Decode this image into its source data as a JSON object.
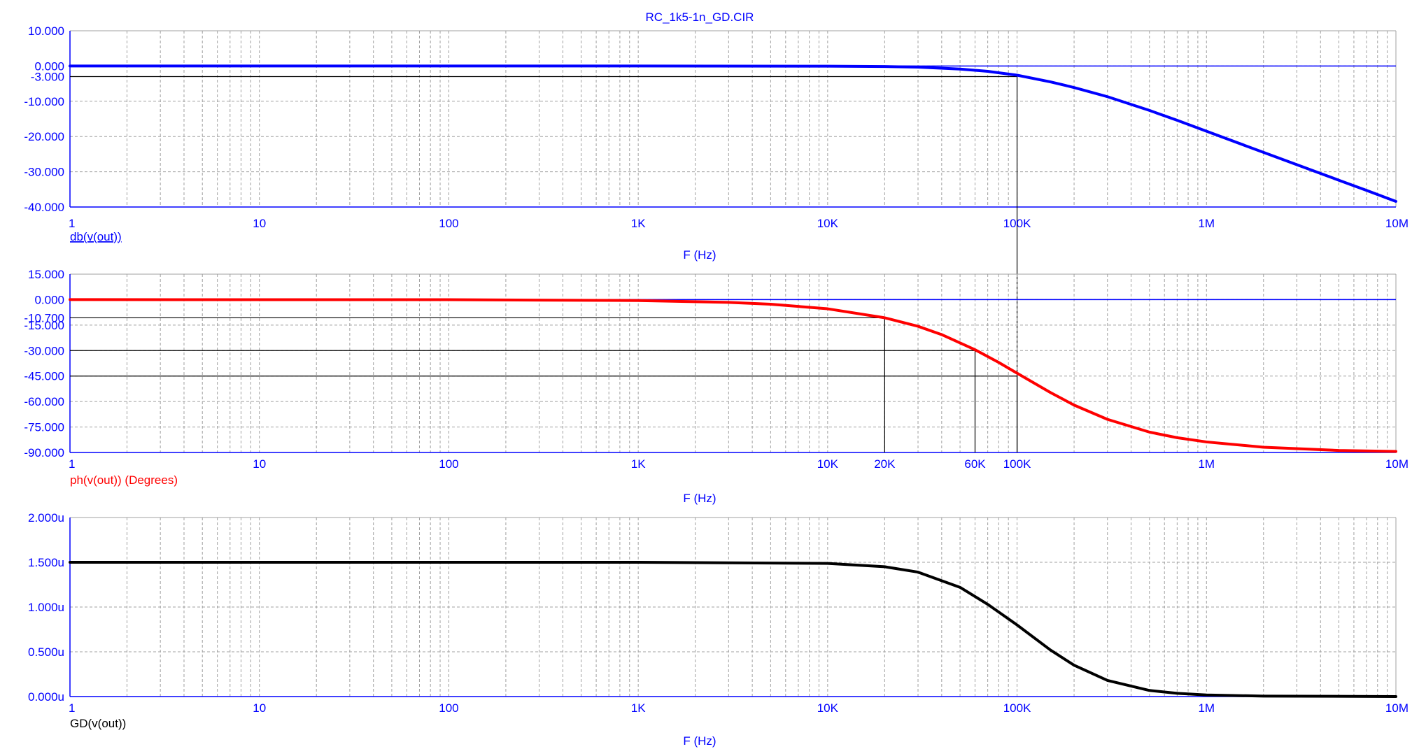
{
  "window": {
    "title": "RC_1k5-1n_GD.CIR"
  },
  "colors": {
    "axis": "#0000ff",
    "grid": "#a0a0a0",
    "marker": "#000000"
  },
  "chart_data": [
    {
      "type": "line",
      "scale_x": "log",
      "xlim": [
        1,
        10000000
      ],
      "ylim": [
        -40,
        10
      ],
      "xlabel": "F (Hz)",
      "ylabel": "db(v(out))",
      "x_ticks": [
        {
          "v": 1,
          "label": "1"
        },
        {
          "v": 10,
          "label": "10"
        },
        {
          "v": 100,
          "label": "100"
        },
        {
          "v": 1000,
          "label": "1K"
        },
        {
          "v": 10000,
          "label": "10K"
        },
        {
          "v": 100000,
          "label": "100K"
        },
        {
          "v": 1000000,
          "label": "1M"
        },
        {
          "v": 10000000,
          "label": "10M"
        }
      ],
      "y_ticks": [
        {
          "v": 10,
          "label": "10.000"
        },
        {
          "v": 0,
          "label": "0.000"
        },
        {
          "v": -3,
          "label": "-3.000"
        },
        {
          "v": -10,
          "label": "-10.000"
        },
        {
          "v": -20,
          "label": "-20.000"
        },
        {
          "v": -30,
          "label": "-30.000"
        },
        {
          "v": -40,
          "label": "-40.000"
        }
      ],
      "grid_y": [
        10,
        0,
        -10,
        -20,
        -30,
        -40
      ],
      "hlines": [
        {
          "y": 0,
          "color": "#0000ff"
        }
      ],
      "markers": [
        {
          "y": -3,
          "x": 100000
        }
      ],
      "marker_labels": [],
      "series": [
        {
          "color": "#0000ff",
          "x": [
            1,
            10,
            100,
            1000,
            10000,
            20000,
            30000,
            50000,
            70000,
            100000,
            150000,
            200000,
            300000,
            500000,
            700000,
            1000000,
            2000000,
            3000000,
            5000000,
            7000000,
            10000000
          ],
          "y": [
            0,
            0,
            0,
            0,
            -0.04,
            -0.15,
            -0.33,
            -0.86,
            -1.5,
            -2.6,
            -4.5,
            -6.1,
            -8.7,
            -12.6,
            -15.4,
            -18.5,
            -24.5,
            -28.0,
            -32.4,
            -35.3,
            -38.4
          ]
        }
      ]
    },
    {
      "type": "line",
      "scale_x": "log",
      "xlim": [
        1,
        10000000
      ],
      "ylim": [
        -90,
        15
      ],
      "xlabel": "F (Hz)",
      "ylabel": "ph(v(out)) (Degrees)",
      "x_ticks": [
        {
          "v": 1,
          "label": "1"
        },
        {
          "v": 10,
          "label": "10"
        },
        {
          "v": 100,
          "label": "100"
        },
        {
          "v": 1000,
          "label": "1K"
        },
        {
          "v": 10000,
          "label": "10K"
        },
        {
          "v": 100000,
          "label": "100K"
        },
        {
          "v": 1000000,
          "label": "1M"
        },
        {
          "v": 10000000,
          "label": "10M"
        }
      ],
      "y_ticks": [
        {
          "v": 15,
          "label": "15.000"
        },
        {
          "v": 0,
          "label": "0.000"
        },
        {
          "v": -10.7,
          "label": "-10.700"
        },
        {
          "v": -15,
          "label": "-15.000"
        },
        {
          "v": -30,
          "label": "-30.000"
        },
        {
          "v": -45,
          "label": "-45.000"
        },
        {
          "v": -60,
          "label": "-60.000"
        },
        {
          "v": -75,
          "label": "-75.000"
        },
        {
          "v": -90,
          "label": "-90.000"
        }
      ],
      "grid_y": [
        15,
        0,
        -15,
        -30,
        -45,
        -60,
        -75,
        -90
      ],
      "hlines": [
        {
          "y": 0,
          "color": "#0000ff"
        }
      ],
      "markers": [
        {
          "y": -10.7,
          "x": 20000
        },
        {
          "y": -30,
          "x": 60000
        },
        {
          "y": -45,
          "x": 100000
        }
      ],
      "marker_labels": [
        {
          "x": 20000,
          "label": "20K"
        },
        {
          "x": 60000,
          "label": "60K"
        }
      ],
      "series": [
        {
          "color": "#ff0000",
          "x": [
            1,
            10,
            100,
            1000,
            3000,
            5000,
            10000,
            20000,
            30000,
            40000,
            60000,
            80000,
            100000,
            150000,
            200000,
            300000,
            500000,
            700000,
            1000000,
            2000000,
            5000000,
            10000000
          ],
          "y": [
            0,
            -0.01,
            -0.05,
            -0.54,
            -1.62,
            -2.7,
            -5.4,
            -10.7,
            -15.7,
            -20.6,
            -29.5,
            -37.0,
            -43.3,
            -54.7,
            -62.1,
            -70.5,
            -78.0,
            -81.3,
            -83.8,
            -86.9,
            -88.8,
            -89.4
          ]
        }
      ]
    },
    {
      "type": "line",
      "scale_x": "log",
      "xlim": [
        1,
        10000000
      ],
      "ylim": [
        0,
        2
      ],
      "xlabel": "F (Hz)",
      "ylabel": "GD(v(out))",
      "x_ticks": [
        {
          "v": 1,
          "label": "1"
        },
        {
          "v": 10,
          "label": "10"
        },
        {
          "v": 100,
          "label": "100"
        },
        {
          "v": 1000,
          "label": "1K"
        },
        {
          "v": 10000,
          "label": "10K"
        },
        {
          "v": 100000,
          "label": "100K"
        },
        {
          "v": 1000000,
          "label": "1M"
        },
        {
          "v": 10000000,
          "label": "10M"
        }
      ],
      "y_ticks": [
        {
          "v": 2,
          "label": "2.000u"
        },
        {
          "v": 1.5,
          "label": "1.500u"
        },
        {
          "v": 1,
          "label": "1.000u"
        },
        {
          "v": 0.5,
          "label": "0.500u"
        },
        {
          "v": 0,
          "label": "0.000u"
        }
      ],
      "grid_y": [
        2,
        1.5,
        1,
        0.5,
        0
      ],
      "hlines": [],
      "markers": [],
      "marker_labels": [],
      "series": [
        {
          "color": "#000000",
          "x": [
            1,
            10,
            100,
            1000,
            10000,
            20000,
            30000,
            50000,
            70000,
            100000,
            150000,
            200000,
            300000,
            500000,
            700000,
            1000000,
            2000000,
            10000000
          ],
          "y": [
            1.5,
            1.5,
            1.5,
            1.5,
            1.487,
            1.45,
            1.39,
            1.22,
            1.03,
            0.8,
            0.52,
            0.35,
            0.18,
            0.068,
            0.036,
            0.018,
            0.005,
            0.0002
          ]
        }
      ]
    }
  ]
}
